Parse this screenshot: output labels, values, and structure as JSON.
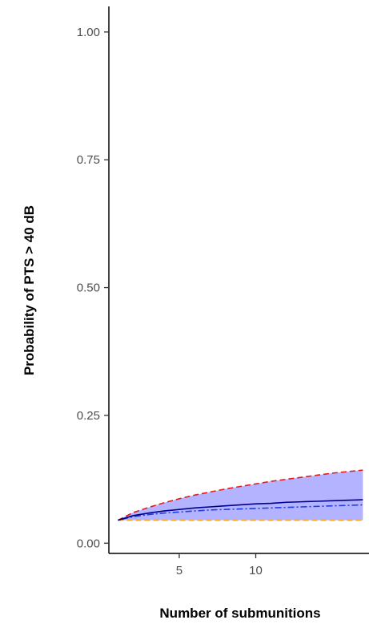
{
  "chart_data": {
    "type": "area",
    "title": "",
    "xlabel": "Number of submunitions",
    "ylabel": "Probability of PTS > 40 dB",
    "xlim": [
      0.4,
      17.4
    ],
    "ylim": [
      -0.02,
      1.05
    ],
    "x_ticks": [
      5,
      10
    ],
    "x_tick_labels": [
      "5",
      "10"
    ],
    "y_ticks": [
      0.0,
      0.25,
      0.5,
      0.75,
      1.0
    ],
    "y_tick_labels": [
      "0.00",
      "0.25",
      "0.50",
      "0.75",
      "1.00"
    ],
    "grid": false,
    "legend": "none",
    "x": [
      1,
      2,
      3,
      4,
      5,
      6,
      7,
      8,
      9,
      10,
      11,
      12,
      13,
      14,
      15,
      16,
      17
    ],
    "series": [
      {
        "line_style": "dashed",
        "color": "#e41a1c",
        "values": [
          0.045,
          0.06,
          0.07,
          0.079,
          0.087,
          0.094,
          0.1,
          0.106,
          0.111,
          0.116,
          0.121,
          0.125,
          0.129,
          0.133,
          0.137,
          0.14,
          0.143
        ]
      },
      {
        "line_style": "solid",
        "color": "#00008b",
        "values": [
          0.045,
          0.054,
          0.059,
          0.063,
          0.066,
          0.069,
          0.071,
          0.073,
          0.075,
          0.077,
          0.078,
          0.08,
          0.081,
          0.082,
          0.083,
          0.084,
          0.085
        ]
      },
      {
        "line_style": "dotdash",
        "color": "#1f3fe0",
        "values": [
          0.045,
          0.052,
          0.056,
          0.059,
          0.061,
          0.063,
          0.065,
          0.066,
          0.067,
          0.068,
          0.069,
          0.07,
          0.071,
          0.072,
          0.073,
          0.074,
          0.075
        ]
      },
      {
        "line_style": "dashed",
        "color": "#f5a623",
        "values": [
          0.045,
          0.045,
          0.045,
          0.045,
          0.045,
          0.045,
          0.045,
          0.045,
          0.045,
          0.045,
          0.045,
          0.045,
          0.045,
          0.045,
          0.045,
          0.045,
          0.045
        ]
      }
    ],
    "band": {
      "upper_series": 0,
      "lower_series": 3,
      "fill": "#b3b3ff"
    }
  }
}
